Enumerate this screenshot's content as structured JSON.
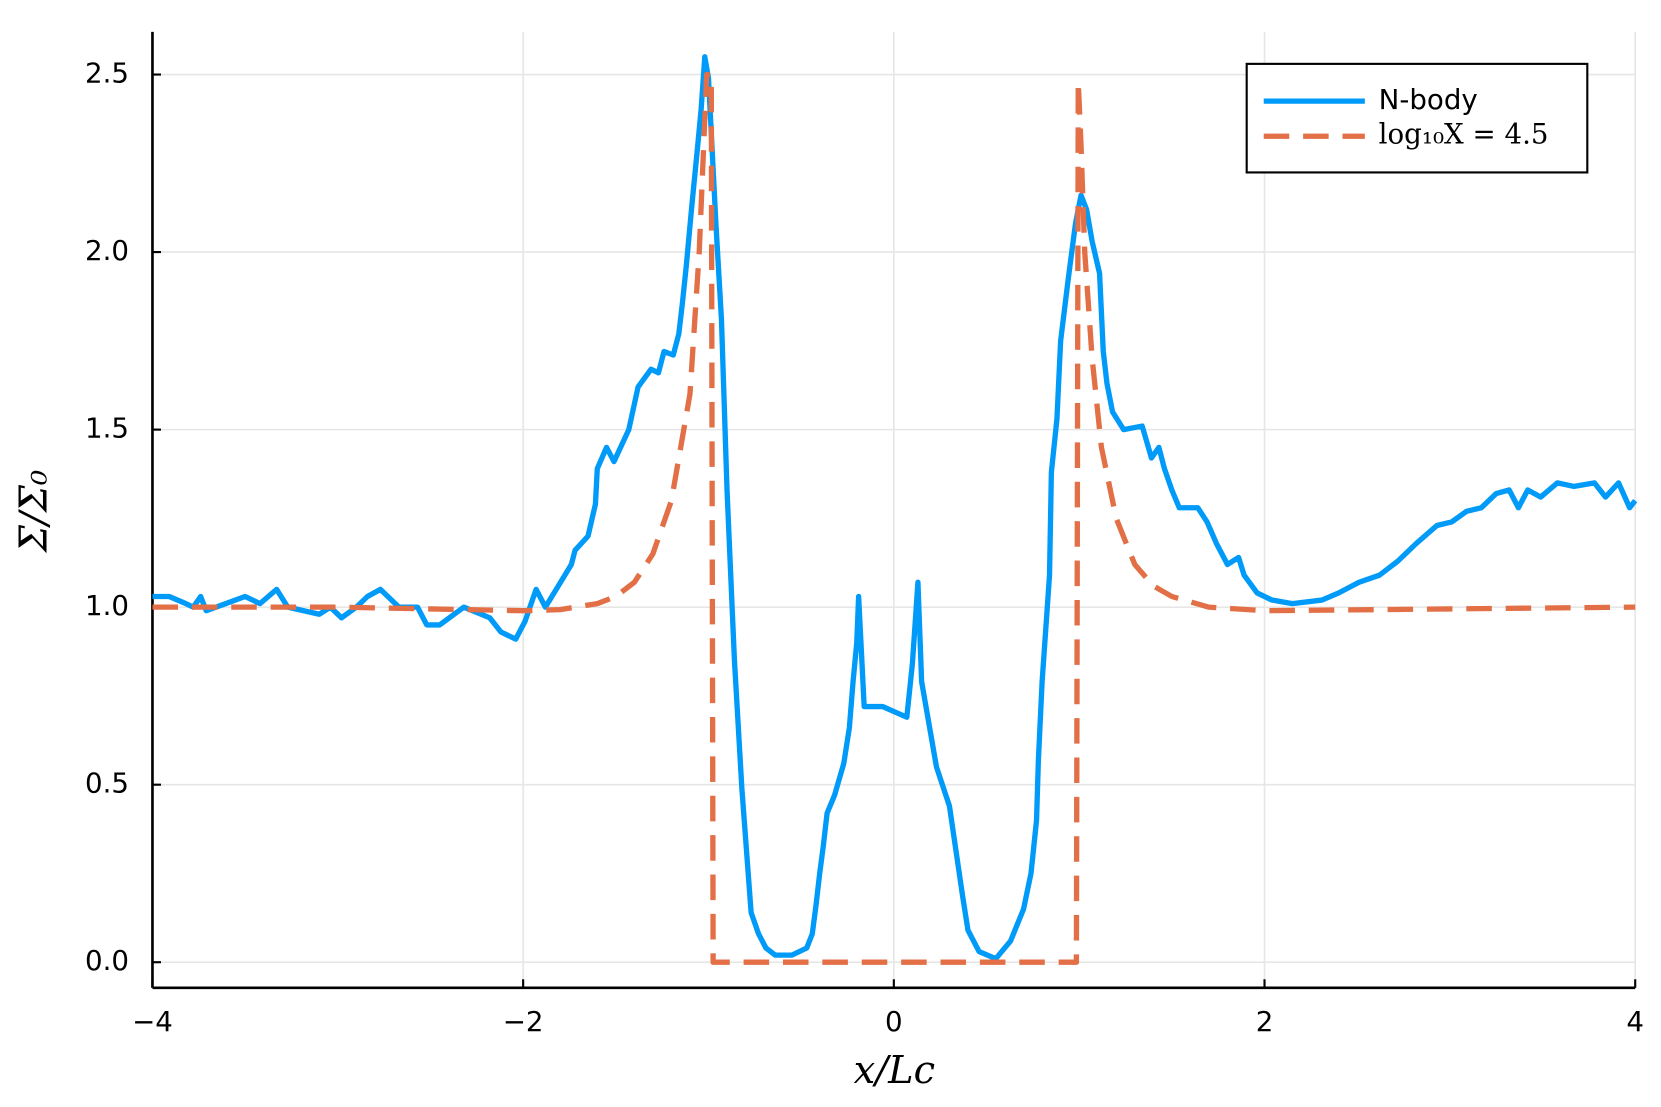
{
  "chart_data": {
    "type": "line",
    "xlabel": "x/Lc",
    "ylabel": "Σ/Σ₀",
    "xlim": [
      -4,
      4
    ],
    "ylim": [
      -0.072,
      2.62
    ],
    "xticks": [
      {
        "value": -4,
        "label": "−4"
      },
      {
        "value": -2,
        "label": "−2"
      },
      0,
      2,
      4
    ],
    "yticks": [
      {
        "value": 0,
        "label": "0.0"
      },
      0.5,
      {
        "value": 1,
        "label": "1.0"
      },
      1.5,
      {
        "value": 2,
        "label": "2.0"
      },
      2.5
    ],
    "grid": true,
    "legend": "upper right",
    "series": [
      {
        "name": "N-body",
        "color": "#009af9",
        "dash": false,
        "x": [
          -4,
          -3.91,
          -3.82,
          -3.78,
          -3.74,
          -3.71,
          -3.5,
          -3.42,
          -3.33,
          -3.27,
          -3.1,
          -3.04,
          -2.98,
          -2.9,
          -2.84,
          -2.77,
          -2.67,
          -2.57,
          -2.52,
          -2.45,
          -2.32,
          -2.18,
          -2.12,
          -2.04,
          -1.99,
          -1.95,
          -1.93,
          -1.88,
          -1.81,
          -1.74,
          -1.72,
          -1.65,
          -1.61,
          -1.6,
          -1.55,
          -1.51,
          -1.43,
          -1.38,
          -1.31,
          -1.27,
          -1.24,
          -1.19,
          -1.16,
          -1.14,
          -1.12,
          -1.09,
          -1.06,
          -1.04,
          -1.02,
          -1,
          -0.96,
          -0.93,
          -0.9,
          -0.86,
          -0.82,
          -0.77,
          -0.73,
          -0.69,
          -0.64,
          -0.55,
          -0.47,
          -0.44,
          -0.42,
          -0.4,
          -0.38,
          -0.36,
          -0.32,
          -0.27,
          -0.24,
          -0.22,
          -0.2,
          -0.19,
          -0.16,
          -0.06,
          0.07,
          0.1,
          0.13,
          0.15,
          0.2,
          0.23,
          0.3,
          0.37,
          0.4,
          0.46,
          0.55,
          0.63,
          0.7,
          0.74,
          0.77,
          0.78,
          0.8,
          0.84,
          0.85,
          0.88,
          0.9,
          0.94,
          0.98,
          1.01,
          1.04,
          1.07,
          1.11,
          1.13,
          1.15,
          1.18,
          1.24,
          1.34,
          1.39,
          1.43,
          1.46,
          1.5,
          1.54,
          1.64,
          1.69,
          1.74,
          1.8,
          1.86,
          1.89,
          1.96,
          2.04,
          2.15,
          2.31,
          2.4,
          2.51,
          2.62,
          2.72,
          2.82,
          2.93,
          3.01,
          3.09,
          3.17,
          3.25,
          3.32,
          3.37,
          3.42,
          3.49,
          3.58,
          3.67,
          3.78,
          3.84,
          3.91,
          3.97,
          4
        ],
        "values": [
          1.03,
          1.03,
          1.01,
          1,
          1.03,
          0.99,
          1.03,
          1.01,
          1.05,
          1,
          0.98,
          1,
          0.97,
          1,
          1.03,
          1.05,
          1,
          1,
          0.95,
          0.95,
          1,
          0.97,
          0.93,
          0.91,
          0.96,
          1.02,
          1.05,
          1,
          1.06,
          1.12,
          1.16,
          1.2,
          1.29,
          1.39,
          1.45,
          1.41,
          1.5,
          1.62,
          1.67,
          1.66,
          1.72,
          1.71,
          1.77,
          1.86,
          1.96,
          2.13,
          2.29,
          2.4,
          2.55,
          2.49,
          2.08,
          1.81,
          1.33,
          0.85,
          0.49,
          0.14,
          0.08,
          0.04,
          0.02,
          0.02,
          0.04,
          0.08,
          0.16,
          0.25,
          0.33,
          0.42,
          0.47,
          0.56,
          0.66,
          0.79,
          0.9,
          1.03,
          0.72,
          0.72,
          0.69,
          0.84,
          1.07,
          0.79,
          0.64,
          0.55,
          0.44,
          0.19,
          0.09,
          0.03,
          0.01,
          0.06,
          0.15,
          0.25,
          0.4,
          0.57,
          0.79,
          1.09,
          1.38,
          1.53,
          1.75,
          1.92,
          2.08,
          2.16,
          2.12,
          2.03,
          1.94,
          1.72,
          1.63,
          1.55,
          1.5,
          1.51,
          1.42,
          1.45,
          1.39,
          1.33,
          1.28,
          1.28,
          1.24,
          1.18,
          1.12,
          1.14,
          1.09,
          1.04,
          1.02,
          1.01,
          1.02,
          1.04,
          1.07,
          1.09,
          1.13,
          1.18,
          1.23,
          1.24,
          1.27,
          1.28,
          1.32,
          1.33,
          1.28,
          1.33,
          1.31,
          1.35,
          1.34,
          1.35,
          1.31,
          1.35,
          1.28,
          1.3
        ]
      },
      {
        "name": "log₁₀X = 4.5",
        "color": "#e26f46",
        "dash": true,
        "x": [
          -4,
          -3,
          -2.5,
          -2,
          -1.8,
          -1.6,
          -1.5,
          -1.4,
          -1.3,
          -1.2,
          -1.1,
          -1.05,
          -1.01,
          -0.985,
          -0.975,
          0.985,
          0.995,
          1.01,
          1.03,
          1.07,
          1.12,
          1.2,
          1.3,
          1.4,
          1.5,
          1.7,
          2,
          3,
          4
        ],
        "values": [
          1,
          1,
          0.995,
          0.99,
          0.993,
          1.01,
          1.03,
          1.07,
          1.15,
          1.3,
          1.6,
          2,
          2.5,
          2.5,
          0,
          0,
          2.48,
          2.3,
          2,
          1.7,
          1.45,
          1.25,
          1.12,
          1.06,
          1.03,
          1,
          0.99,
          0.995,
          1
        ]
      }
    ]
  }
}
